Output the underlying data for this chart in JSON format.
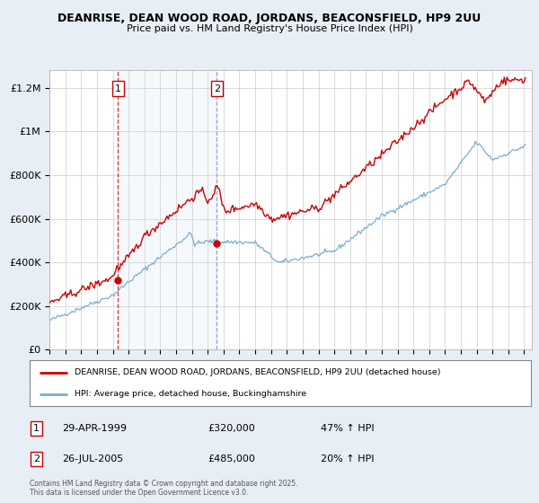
{
  "title": "DEANRISE, DEAN WOOD ROAD, JORDANS, BEACONSFIELD, HP9 2UU",
  "subtitle": "Price paid vs. HM Land Registry's House Price Index (HPI)",
  "background_color": "#e8eef5",
  "plot_background": "#ffffff",
  "shade_color": "#dce8f5",
  "y_ticks": [
    0,
    200000,
    400000,
    600000,
    800000,
    1000000,
    1200000
  ],
  "y_tick_labels": [
    "£0",
    "£200K",
    "£400K",
    "£600K",
    "£800K",
    "£1M",
    "£1.2M"
  ],
  "x_ticks": [
    1995,
    1996,
    1997,
    1998,
    1999,
    2000,
    2001,
    2002,
    2003,
    2004,
    2005,
    2006,
    2007,
    2008,
    2009,
    2010,
    2011,
    2012,
    2013,
    2014,
    2015,
    2016,
    2017,
    2018,
    2019,
    2020,
    2021,
    2022,
    2023,
    2024,
    2025
  ],
  "sale1_x": 1999.33,
  "sale1_y": 320000,
  "sale1_label": "1",
  "sale2_x": 2005.58,
  "sale2_y": 485000,
  "sale2_label": "2",
  "red_line_color": "#cc0000",
  "blue_line_color": "#7aadd4",
  "legend_red_label": "DEANRISE, DEAN WOOD ROAD, JORDANS, BEACONSFIELD, HP9 2UU (detached house)",
  "legend_blue_label": "HPI: Average price, detached house, Buckinghamshire",
  "annotation1_date": "29-APR-1999",
  "annotation1_price": "£320,000",
  "annotation1_hpi": "47% ↑ HPI",
  "annotation2_date": "26-JUL-2005",
  "annotation2_price": "£485,000",
  "annotation2_hpi": "20% ↑ HPI",
  "copyright_text": "Contains HM Land Registry data © Crown copyright and database right 2025.\nThis data is licensed under the Open Government Licence v3.0.",
  "xlim_min": 1995,
  "xlim_max": 2025.5,
  "ylim_min": 0,
  "ylim_max": 1280000
}
